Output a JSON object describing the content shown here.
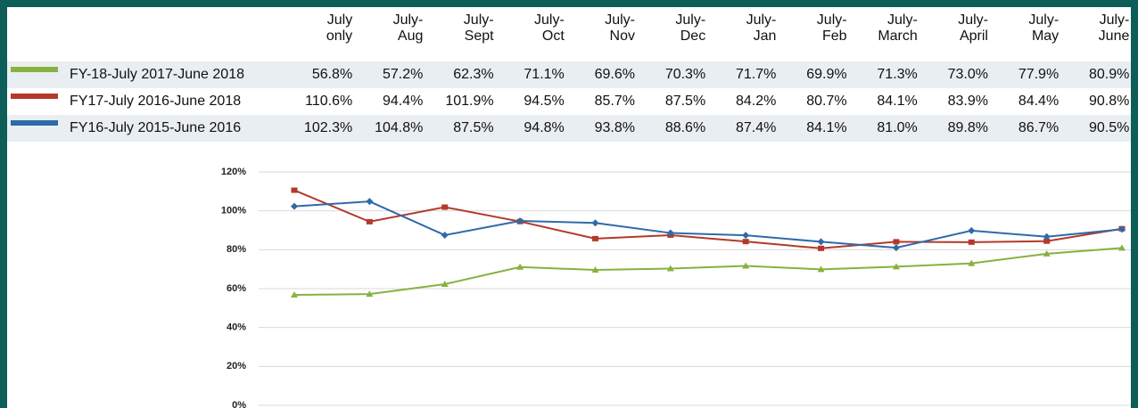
{
  "chart_data": {
    "type": "line",
    "categories": [
      "July\nonly",
      "July-\nAug",
      "July-\nSept",
      "July-\nOct",
      "July-\nNov",
      "July-\nDec",
      "July-\nJan",
      "July-\nFeb",
      "July-\nMarch",
      "July-\nApril",
      "July-\nMay",
      "July-\nJune"
    ],
    "series": [
      {
        "name": "FY-18-July 2017-June 2018",
        "color": "#86b240",
        "marker": "triangle",
        "values": [
          56.8,
          57.2,
          62.3,
          71.1,
          69.6,
          70.3,
          71.7,
          69.9,
          71.3,
          73.0,
          77.9,
          80.9
        ],
        "value_labels": [
          "56.8%",
          "57.2%",
          "62.3%",
          "71.1%",
          "69.6%",
          "70.3%",
          "71.7%",
          "69.9%",
          "71.3%",
          "73.0%",
          "77.9%",
          "80.9%"
        ]
      },
      {
        "name": "FY17-July 2016-June 2018",
        "color": "#b4392a",
        "marker": "square",
        "values": [
          110.6,
          94.4,
          101.9,
          94.5,
          85.7,
          87.5,
          84.2,
          80.7,
          84.1,
          83.9,
          84.4,
          90.8
        ],
        "value_labels": [
          "110.6%",
          "94.4%",
          "101.9%",
          "94.5%",
          "85.7%",
          "87.5%",
          "84.2%",
          "80.7%",
          "84.1%",
          "83.9%",
          "84.4%",
          "90.8%"
        ]
      },
      {
        "name": "FY16-July 2015-June 2016",
        "color": "#2f6aa8",
        "marker": "diamond",
        "values": [
          102.3,
          104.8,
          87.5,
          94.8,
          93.8,
          88.6,
          87.4,
          84.1,
          81.0,
          89.8,
          86.7,
          90.5
        ],
        "value_labels": [
          "102.3%",
          "104.8%",
          "87.5%",
          "94.8%",
          "93.8%",
          "88.6%",
          "87.4%",
          "84.1%",
          "81.0%",
          "89.8%",
          "86.7%",
          "90.5%"
        ]
      }
    ],
    "ylim": [
      0,
      120
    ],
    "yticks": [
      {
        "value": 0,
        "label": "0%"
      },
      {
        "value": 20,
        "label": "20%"
      },
      {
        "value": 40,
        "label": "40%"
      },
      {
        "value": 60,
        "label": "60%"
      },
      {
        "value": 80,
        "label": "80%"
      },
      {
        "value": 100,
        "label": "100%"
      },
      {
        "value": 120,
        "label": "120%"
      }
    ],
    "grid": true
  }
}
